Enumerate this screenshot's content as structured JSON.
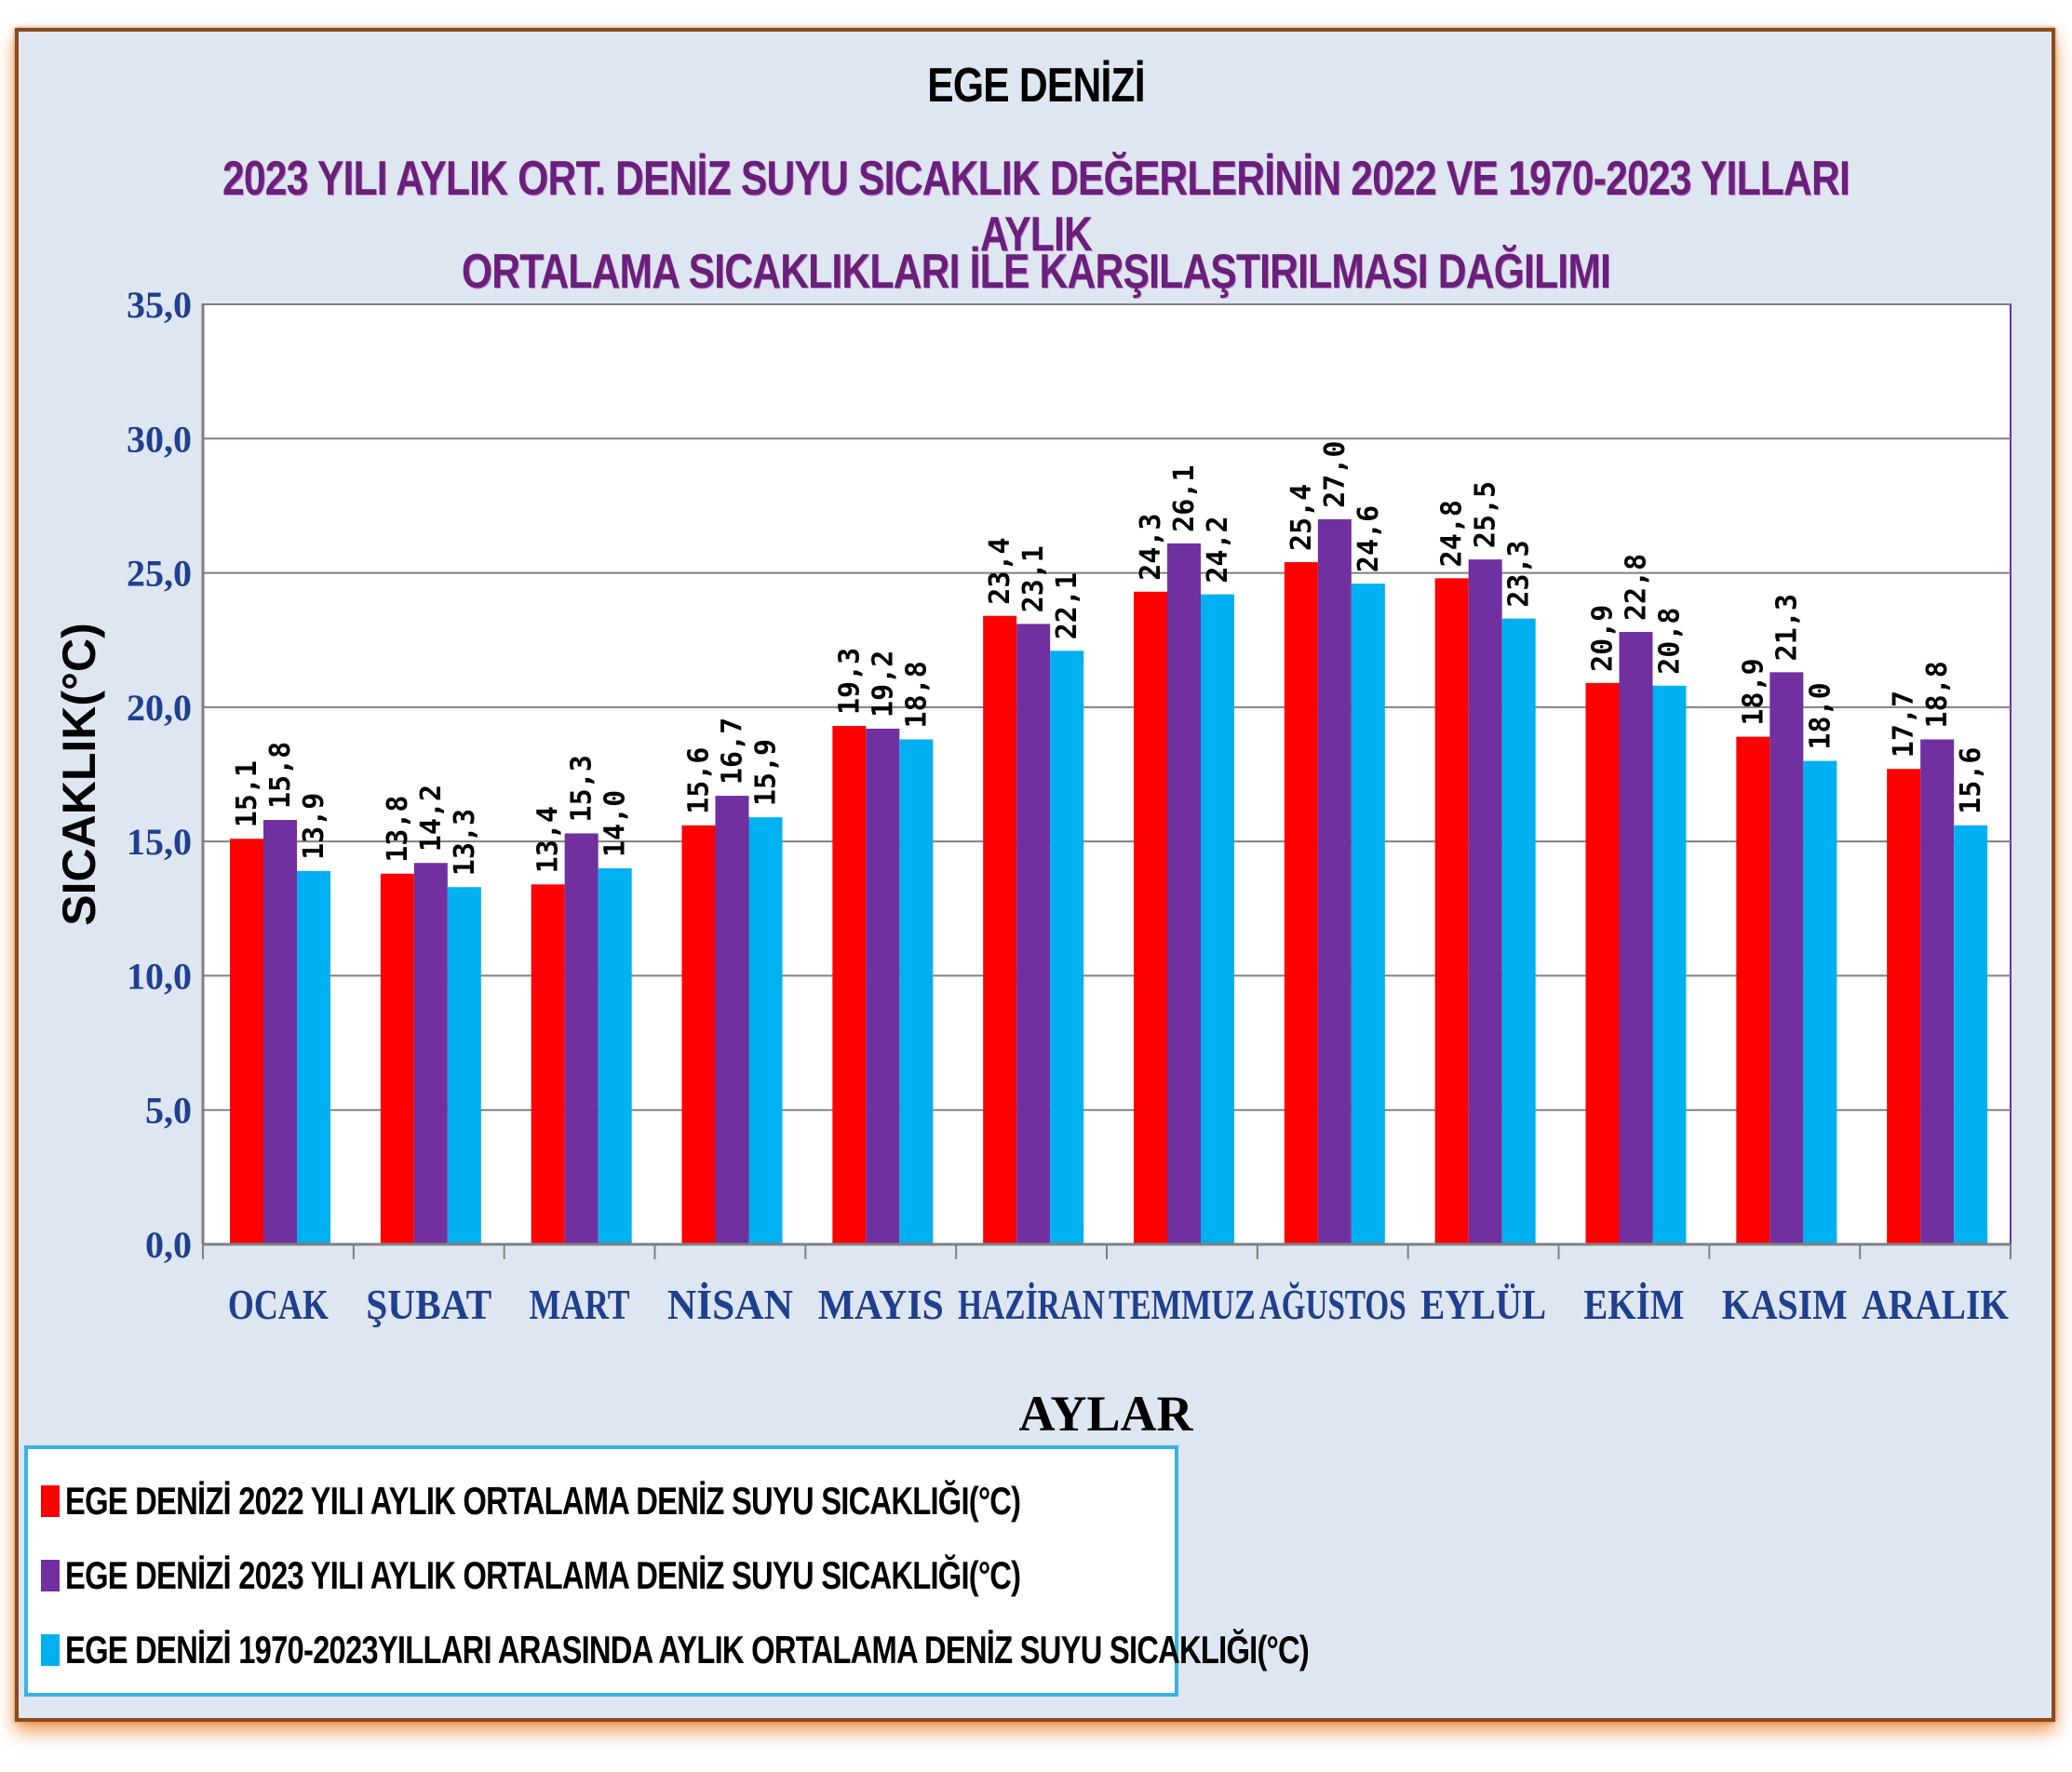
{
  "chart_data": {
    "type": "bar",
    "title": "EGE DENİZİ",
    "subtitle_lines": [
      "2023 YILI AYLIK ORT. DENİZ SUYU SICAKLIK DEĞERLERİNİN 2022 VE 1970-2023  YILLARI  AYLIK",
      "ORTALAMA SICAKLIKLARI İLE KARŞILAŞTIRILMASI DAĞILIMI"
    ],
    "xlabel": "AYLAR",
    "ylabel": "SICAKLIK(°C)",
    "ylim": [
      0,
      35
    ],
    "yticks": [
      "0,0",
      "5,0",
      "10,0",
      "15,0",
      "20,0",
      "25,0",
      "30,0",
      "35,0"
    ],
    "ytick_values": [
      0,
      5,
      10,
      15,
      20,
      25,
      30,
      35
    ],
    "grid": true,
    "legend_position": "bottom-left",
    "categories": [
      "OCAK",
      "ŞUBAT",
      "MART",
      "NİSAN",
      "MAYIS",
      "HAZİRAN",
      "TEMMUZ",
      "AĞUSTOS",
      "EYLÜL",
      "EKİM",
      "KASIM",
      "ARALIK"
    ],
    "series": [
      {
        "name": "EGE DENİZİ  2022 YILI AYLIK ORTALAMA DENİZ SUYU SICAKLIĞI(°C)",
        "color": "#ff0000",
        "values": [
          15.1,
          13.8,
          13.4,
          15.6,
          19.3,
          23.4,
          24.3,
          25.4,
          24.8,
          20.9,
          18.9,
          17.7
        ],
        "labels": [
          "15,1",
          "13,8",
          "13,4",
          "15,6",
          "19,3",
          "23,4",
          "24,3",
          "25,4",
          "24,8",
          "20,9",
          "18,9",
          "17,7"
        ]
      },
      {
        "name": "EGE DENİZİ 2023 YILI AYLIK ORTALAMA DENİZ SUYU SICAKLIĞI(°C)",
        "color": "#7030a0",
        "values": [
          15.8,
          14.2,
          15.3,
          16.7,
          19.2,
          23.1,
          26.1,
          27.0,
          25.5,
          22.8,
          21.3,
          18.8
        ],
        "labels": [
          "15,8",
          "14,2",
          "15,3",
          "16,7",
          "19,2",
          "23,1",
          "26,1",
          "27,0",
          "25,5",
          "22,8",
          "21,3",
          "18,8"
        ]
      },
      {
        "name": "EGE DENİZİ  1970-2023YILLARI ARASINDA AYLIK ORTALAMA DENİZ SUYU SICAKLIĞI(°C)",
        "color": "#00b0f0",
        "values": [
          13.9,
          13.3,
          14.0,
          15.9,
          18.8,
          22.1,
          24.2,
          24.6,
          23.3,
          20.8,
          18.0,
          15.6
        ],
        "labels": [
          "13,9",
          "13,3",
          "14,0",
          "15,9",
          "18,8",
          "22,1",
          "24,2",
          "24,6",
          "23,3",
          "20,8",
          "18,0",
          "15,6"
        ]
      }
    ]
  }
}
